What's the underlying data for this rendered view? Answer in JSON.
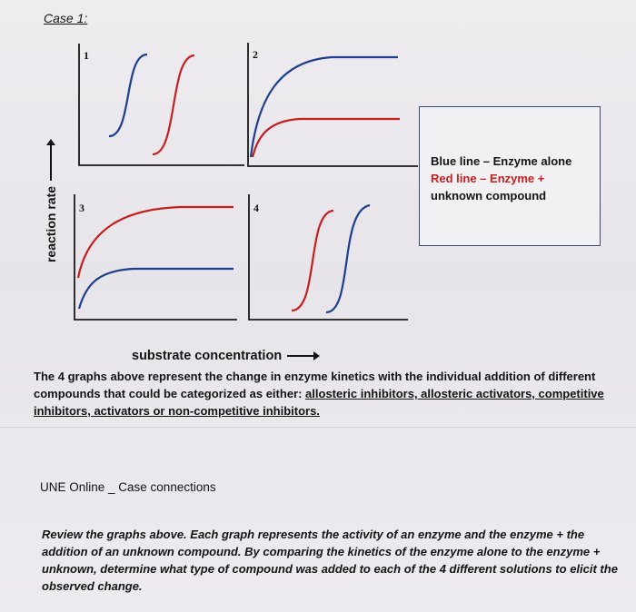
{
  "case_title": "Case 1:",
  "panels": [
    {
      "num": "1"
    },
    {
      "num": "2"
    },
    {
      "num": "3"
    },
    {
      "num": "4"
    }
  ],
  "y_axis_label": "reaction rate",
  "x_axis_label": "substrate concentration",
  "legend": {
    "blue_line": "Blue line – Enzyme alone",
    "red_line": "Red line – Enzyme +",
    "red_line_cont": "unknown compound"
  },
  "colors": {
    "blue": "#1d3f8f",
    "red": "#c51f1f"
  },
  "description_plain": "The 4 graphs above represent the change in enzyme kinetics with the individual addition of different compounds that could be categorized as either: ",
  "description_underlined": "allosteric inhibitors, allosteric activators, competitive inhibitors, activators or non-competitive inhibitors.",
  "footer_label": "UNE Online _ Case connections",
  "review_text": "Review the graphs above. Each graph represents the activity of an enzyme and the enzyme + the addition of an unknown compound. By comparing the kinetics of the enzyme alone to the enzyme + unknown, determine what type of compound was added to each of the 4 different solutions to elicit the observed change.",
  "chart_data": [
    {
      "type": "line",
      "panel": "1",
      "series": [
        {
          "curve": "sigmoidal",
          "color": "#c51f1f"
        },
        {
          "curve": "sigmoidal",
          "color": "#1d3f8f",
          "shift": "left"
        }
      ]
    },
    {
      "type": "line",
      "panel": "2",
      "series": [
        {
          "curve": "hyperbolic",
          "color": "#1d3f8f",
          "vmax": "high"
        },
        {
          "curve": "hyperbolic",
          "color": "#c51f1f",
          "vmax": "low"
        }
      ]
    },
    {
      "type": "line",
      "panel": "3",
      "series": [
        {
          "curve": "hyperbolic",
          "color": "#c51f1f",
          "vmax": "high"
        },
        {
          "curve": "hyperbolic",
          "color": "#1d3f8f",
          "vmax": "low"
        }
      ]
    },
    {
      "type": "line",
      "panel": "4",
      "series": [
        {
          "curve": "sigmoidal",
          "color": "#c51f1f",
          "shift": "left"
        },
        {
          "curve": "sigmoidal",
          "color": "#1d3f8f",
          "shift": "right"
        }
      ]
    }
  ]
}
